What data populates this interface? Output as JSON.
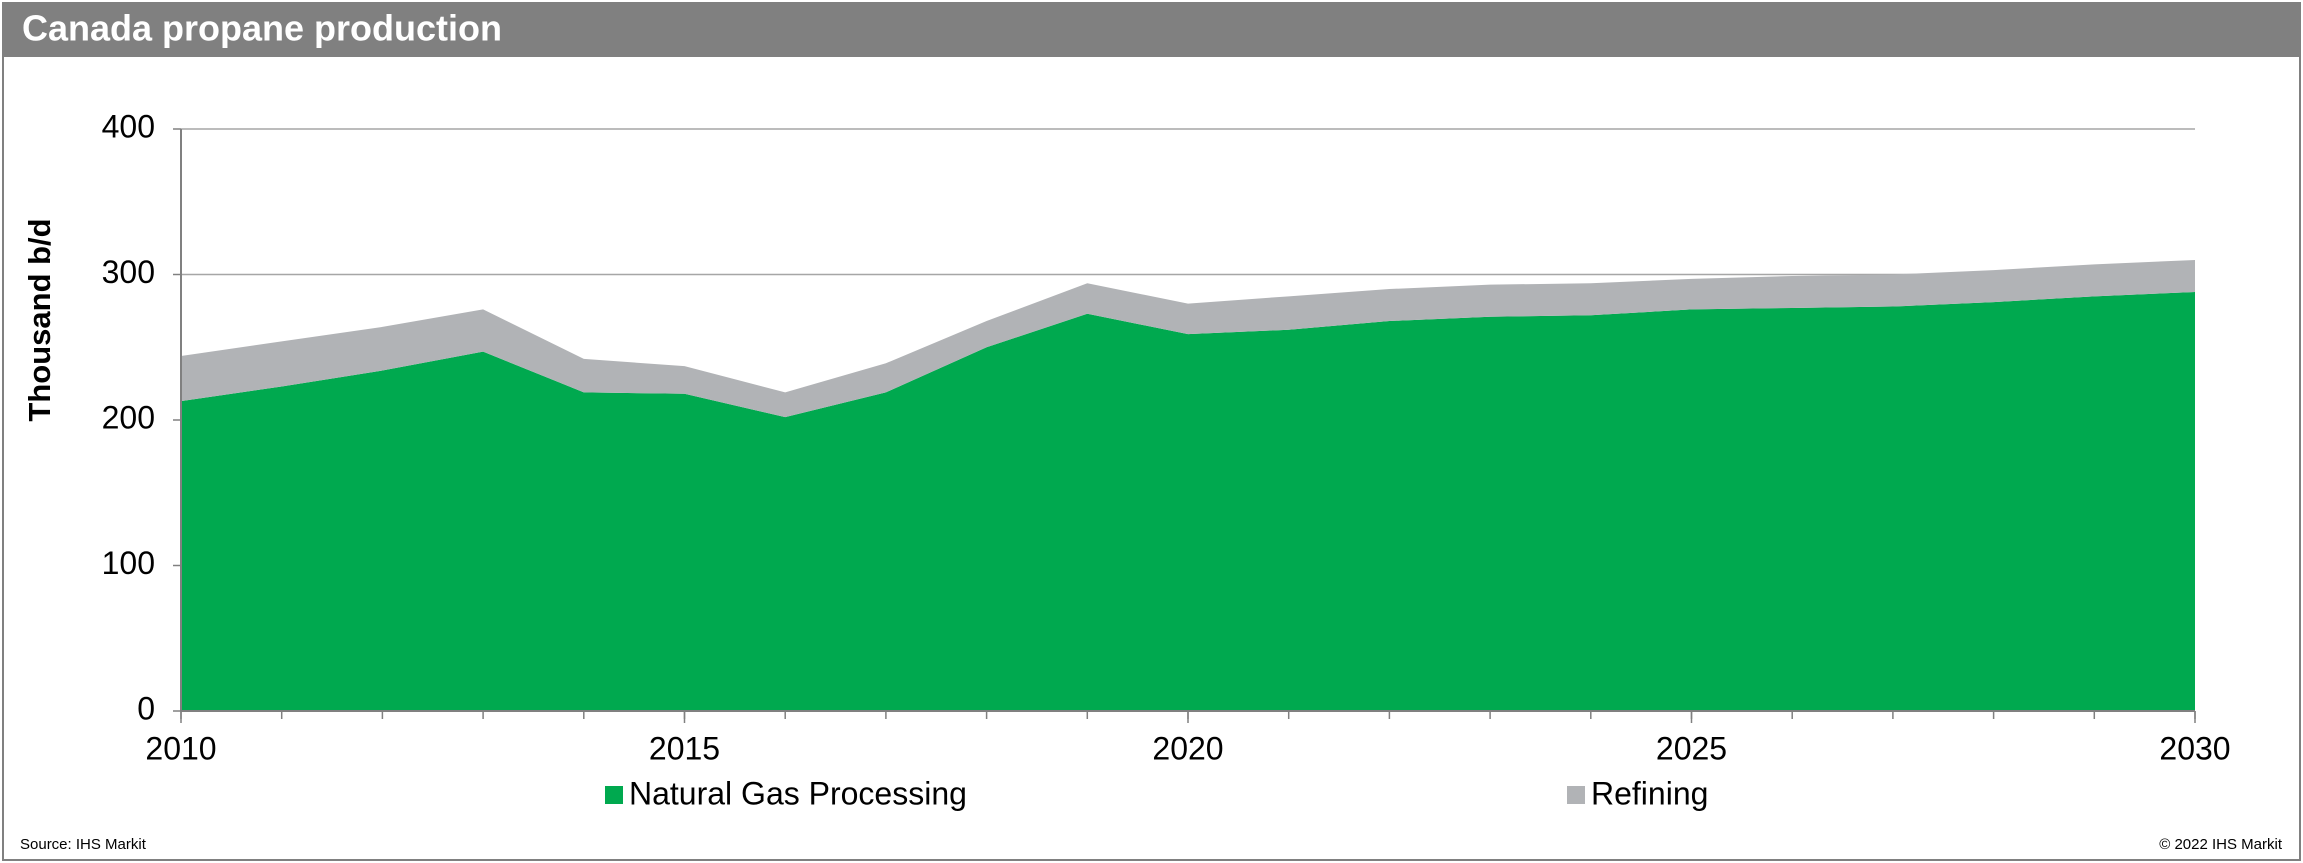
{
  "chart_data": {
    "type": "area",
    "title": "Canada propane production",
    "ylabel": "Thousand b/d",
    "x": [
      2010,
      2011,
      2012,
      2013,
      2014,
      2015,
      2016,
      2017,
      2018,
      2019,
      2020,
      2021,
      2022,
      2023,
      2024,
      2025,
      2026,
      2027,
      2028,
      2029,
      2030
    ],
    "series": [
      {
        "name": "Natural Gas Processing",
        "color": "#00a94f",
        "values": [
          213,
          223,
          234,
          247,
          219,
          218,
          202,
          219,
          250,
          273,
          259,
          262,
          268,
          271,
          272,
          276,
          277,
          278,
          281,
          285,
          288
        ]
      },
      {
        "name": "Refining",
        "color": "#b1b3b6",
        "values": [
          31,
          31,
          30,
          29,
          23,
          19,
          17,
          20,
          18,
          21,
          21,
          23,
          22,
          22,
          22,
          21,
          22,
          22,
          22,
          22,
          22
        ]
      }
    ],
    "stacked": true,
    "xlim": [
      2010,
      2030
    ],
    "xticks": [
      2010,
      2015,
      2020,
      2025,
      2030
    ],
    "ylim": [
      0,
      400
    ],
    "yticks": [
      0,
      100,
      200,
      300,
      400
    ],
    "grid": true,
    "legend": "bottom",
    "source": "Source: IHS Markit",
    "copyright": "© 2022 IHS Markit"
  }
}
